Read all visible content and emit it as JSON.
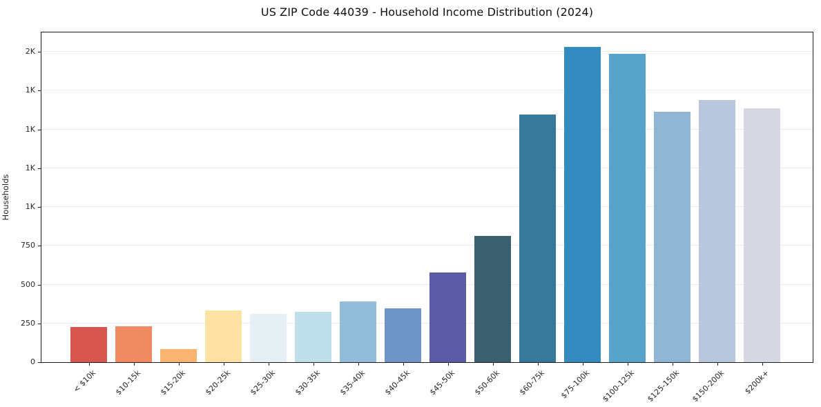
{
  "chart": {
    "title": "US ZIP Code 44039 - Household Income Distribution (2024)",
    "ylabel": "Households"
  },
  "chart_data": {
    "type": "bar",
    "title": "US ZIP Code 44039 - Household Income Distribution (2024)",
    "xlabel": "",
    "ylabel": "Households",
    "categories": [
      "< $10k",
      "$10-15k",
      "$15-20k",
      "$20-25k",
      "$25-30k",
      "$30-35k",
      "$35-40k",
      "$40-45k",
      "$45-50k",
      "$50-60k",
      "$60-75k",
      "$75-100k",
      "$100-125k",
      "$125-150k",
      "$150-200k",
      "$200k+"
    ],
    "values": [
      228,
      230,
      84,
      332,
      311,
      325,
      390,
      349,
      580,
      815,
      1594,
      2030,
      1988,
      1614,
      1688,
      1638
    ],
    "bar_colors": [
      "#d7564f",
      "#ef8a62",
      "#f9b46f",
      "#fde2a3",
      "#e6f0f4",
      "#bedfe9",
      "#92bcd8",
      "#6e95c5",
      "#5b5aa5",
      "#3a6070",
      "#36799a",
      "#358abf",
      "#57a3c9",
      "#90b6d4",
      "#b8c7de",
      "#d6d8e4"
    ],
    "ylim": [
      0,
      2125
    ],
    "yticks": [
      {
        "value": 0,
        "label": "0"
      },
      {
        "value": 250,
        "label": "250"
      },
      {
        "value": 500,
        "label": "500"
      },
      {
        "value": 750,
        "label": "750"
      },
      {
        "value": 1000,
        "label": "1K"
      },
      {
        "value": 1250,
        "label": "1K"
      },
      {
        "value": 1500,
        "label": "1K"
      },
      {
        "value": 1750,
        "label": "1K"
      },
      {
        "value": 2000,
        "label": "2K"
      }
    ],
    "x_tick_rotation_deg": 45,
    "grid": "horizontal",
    "gridline_color": "#e9e9e9",
    "spine_color": "#1a1a1a",
    "background": "#ffffff",
    "legend": "none"
  }
}
